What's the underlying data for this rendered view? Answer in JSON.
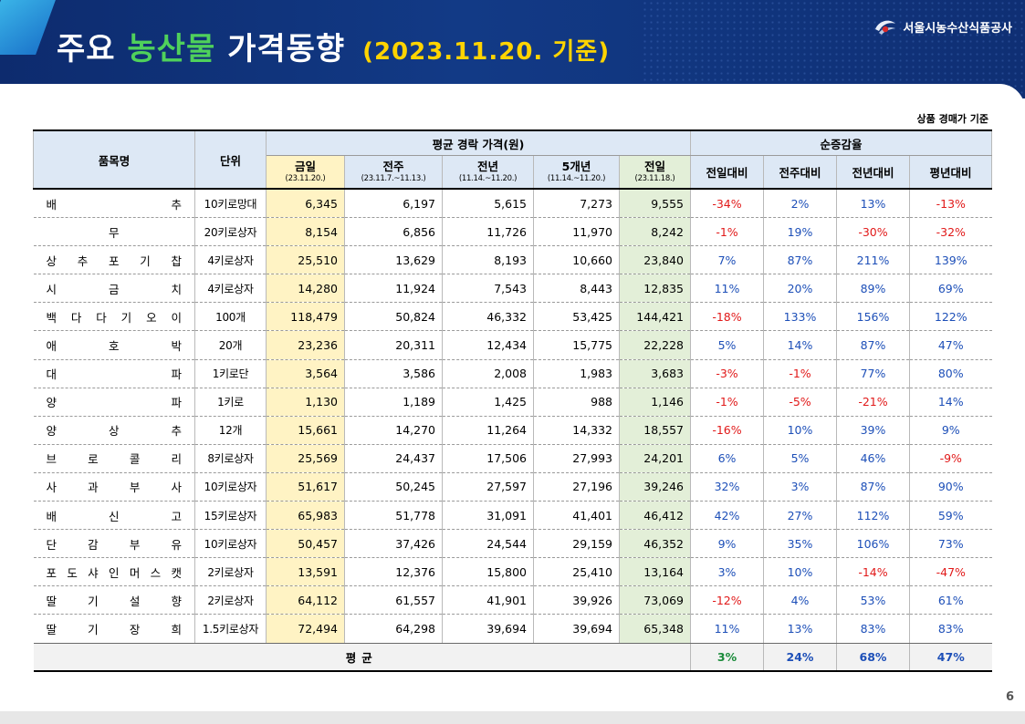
{
  "header": {
    "title_part1": "주요",
    "title_highlight": "농산물",
    "title_part2": "가격동향",
    "title_date": "(2023.11.20. 기준)",
    "org_name": "서울시농수산식품공사",
    "logo_icon": "org-logo-icon"
  },
  "note": "상품 경매가 기준",
  "page_number": "6",
  "colors": {
    "header_bg": "#123a86",
    "highlight": "#4fd15b",
    "date": "#ffd400",
    "negative": "#e11919",
    "positive": "#1d4fb8",
    "avg_up_day": "#1a8b3a"
  },
  "table": {
    "h_item": "품목명",
    "h_unit": "단위",
    "h_price_group": "평균 경락 가격(원)",
    "h_rate_group": "순증감율",
    "price_cols": [
      {
        "label": "금일",
        "range": "(23.11.20.)"
      },
      {
        "label": "전주",
        "range": "(23.11.7.~11.13.)"
      },
      {
        "label": "전년",
        "range": "(11.14.~11.20.)"
      },
      {
        "label": "5개년",
        "range": "(11.14.~11.20.)"
      },
      {
        "label": "전일",
        "range": "(23.11.18.)"
      }
    ],
    "rate_cols": [
      "전일대비",
      "전주대비",
      "전년대비",
      "평년대비"
    ],
    "rows": [
      {
        "name": [
          "배",
          "추"
        ],
        "unit": "10키로망대",
        "prices": [
          "6,345",
          "6,197",
          "5,615",
          "7,273",
          "9,555"
        ],
        "rates": [
          "-34%",
          "2%",
          "13%",
          "-13%"
        ]
      },
      {
        "name": [
          "무"
        ],
        "unit": "20키로상자",
        "prices": [
          "8,154",
          "6,856",
          "11,726",
          "11,970",
          "8,242"
        ],
        "rates": [
          "-1%",
          "19%",
          "-30%",
          "-32%"
        ]
      },
      {
        "name": [
          "상",
          "추",
          "포",
          "기",
          "찹"
        ],
        "unit": "4키로상자",
        "prices": [
          "25,510",
          "13,629",
          "8,193",
          "10,660",
          "23,840"
        ],
        "rates": [
          "7%",
          "87%",
          "211%",
          "139%"
        ]
      },
      {
        "name": [
          "시",
          "금",
          "치"
        ],
        "unit": "4키로상자",
        "prices": [
          "14,280",
          "11,924",
          "7,543",
          "8,443",
          "12,835"
        ],
        "rates": [
          "11%",
          "20%",
          "89%",
          "69%"
        ]
      },
      {
        "name": [
          "백",
          "다",
          "다",
          "기",
          "오",
          "이"
        ],
        "unit": "100개",
        "prices": [
          "118,479",
          "50,824",
          "46,332",
          "53,425",
          "144,421"
        ],
        "rates": [
          "-18%",
          "133%",
          "156%",
          "122%"
        ]
      },
      {
        "name": [
          "애",
          "호",
          "박"
        ],
        "unit": "20개",
        "prices": [
          "23,236",
          "20,311",
          "12,434",
          "15,775",
          "22,228"
        ],
        "rates": [
          "5%",
          "14%",
          "87%",
          "47%"
        ]
      },
      {
        "name": [
          "대",
          "파"
        ],
        "unit": "1키로단",
        "prices": [
          "3,564",
          "3,586",
          "2,008",
          "1,983",
          "3,683"
        ],
        "rates": [
          "-3%",
          "-1%",
          "77%",
          "80%"
        ]
      },
      {
        "name": [
          "양",
          "파"
        ],
        "unit": "1키로",
        "prices": [
          "1,130",
          "1,189",
          "1,425",
          "988",
          "1,146"
        ],
        "rates": [
          "-1%",
          "-5%",
          "-21%",
          "14%"
        ]
      },
      {
        "name": [
          "양",
          "상",
          "추"
        ],
        "unit": "12개",
        "prices": [
          "15,661",
          "14,270",
          "11,264",
          "14,332",
          "18,557"
        ],
        "rates": [
          "-16%",
          "10%",
          "39%",
          "9%"
        ]
      },
      {
        "name": [
          "브",
          "로",
          "콜",
          "리"
        ],
        "unit": "8키로상자",
        "prices": [
          "25,569",
          "24,437",
          "17,506",
          "27,993",
          "24,201"
        ],
        "rates": [
          "6%",
          "5%",
          "46%",
          "-9%"
        ]
      },
      {
        "name": [
          "사",
          "과",
          "부",
          "사"
        ],
        "unit": "10키로상자",
        "prices": [
          "51,617",
          "50,245",
          "27,597",
          "27,196",
          "39,246"
        ],
        "rates": [
          "32%",
          "3%",
          "87%",
          "90%"
        ]
      },
      {
        "name": [
          "배",
          "신",
          "고"
        ],
        "unit": "15키로상자",
        "prices": [
          "65,983",
          "51,778",
          "31,091",
          "41,401",
          "46,412"
        ],
        "rates": [
          "42%",
          "27%",
          "112%",
          "59%"
        ]
      },
      {
        "name": [
          "단",
          "감",
          "부",
          "유"
        ],
        "unit": "10키로상자",
        "prices": [
          "50,457",
          "37,426",
          "24,544",
          "29,159",
          "46,352"
        ],
        "rates": [
          "9%",
          "35%",
          "106%",
          "73%"
        ]
      },
      {
        "name": [
          "포",
          "도",
          "샤",
          "인",
          "머",
          "스",
          "캣"
        ],
        "unit": "2키로상자",
        "prices": [
          "13,591",
          "12,376",
          "15,800",
          "25,410",
          "13,164"
        ],
        "rates": [
          "3%",
          "10%",
          "-14%",
          "-47%"
        ]
      },
      {
        "name": [
          "딸",
          "기",
          "설",
          "향"
        ],
        "unit": "2키로상자",
        "prices": [
          "64,112",
          "61,557",
          "41,901",
          "39,926",
          "73,069"
        ],
        "rates": [
          "-12%",
          "4%",
          "53%",
          "61%"
        ]
      },
      {
        "name": [
          "딸",
          "기",
          "장",
          "희"
        ],
        "unit": "1.5키로상자",
        "prices": [
          "72,494",
          "64,298",
          "39,694",
          "39,694",
          "65,348"
        ],
        "rates": [
          "11%",
          "13%",
          "83%",
          "83%"
        ]
      }
    ],
    "avg": {
      "label": "평균",
      "rates": [
        "3%",
        "24%",
        "68%",
        "47%"
      ]
    }
  }
}
